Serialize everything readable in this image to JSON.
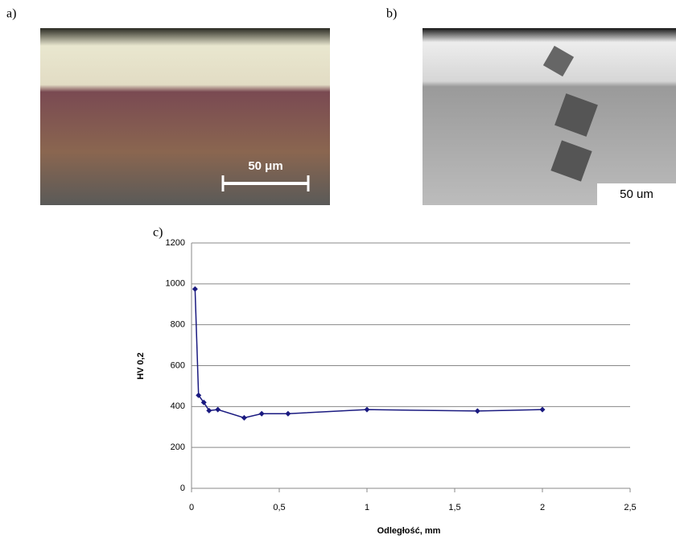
{
  "panels": {
    "a": {
      "label": "a)",
      "scale_bar": "50 μm"
    },
    "b": {
      "label": "b)",
      "scale_bar": "50 um"
    },
    "c": {
      "label": "c)"
    }
  },
  "chart_data": {
    "type": "line",
    "x_label": "Odległość, mm",
    "y_label": "HV 0,2",
    "x": [
      0.02,
      0.04,
      0.07,
      0.1,
      0.15,
      0.3,
      0.4,
      0.55,
      1.0,
      1.63,
      2.0
    ],
    "series": [
      {
        "color": "#1a1a80",
        "values": [
          975,
          455,
          420,
          380,
          385,
          345,
          365,
          365,
          385,
          378,
          385
        ]
      }
    ],
    "xlim": [
      0,
      2.5
    ],
    "xticks": [
      0,
      {
        "value": 0.5,
        "label": "0,5"
      },
      1,
      {
        "value": 1.5,
        "label": "1,5"
      },
      2,
      {
        "value": 2.5,
        "label": "2,5"
      }
    ],
    "ylim": [
      0,
      1200
    ],
    "yticks": [
      0,
      200,
      400,
      600,
      800,
      1000,
      1200
    ],
    "grid": true
  }
}
